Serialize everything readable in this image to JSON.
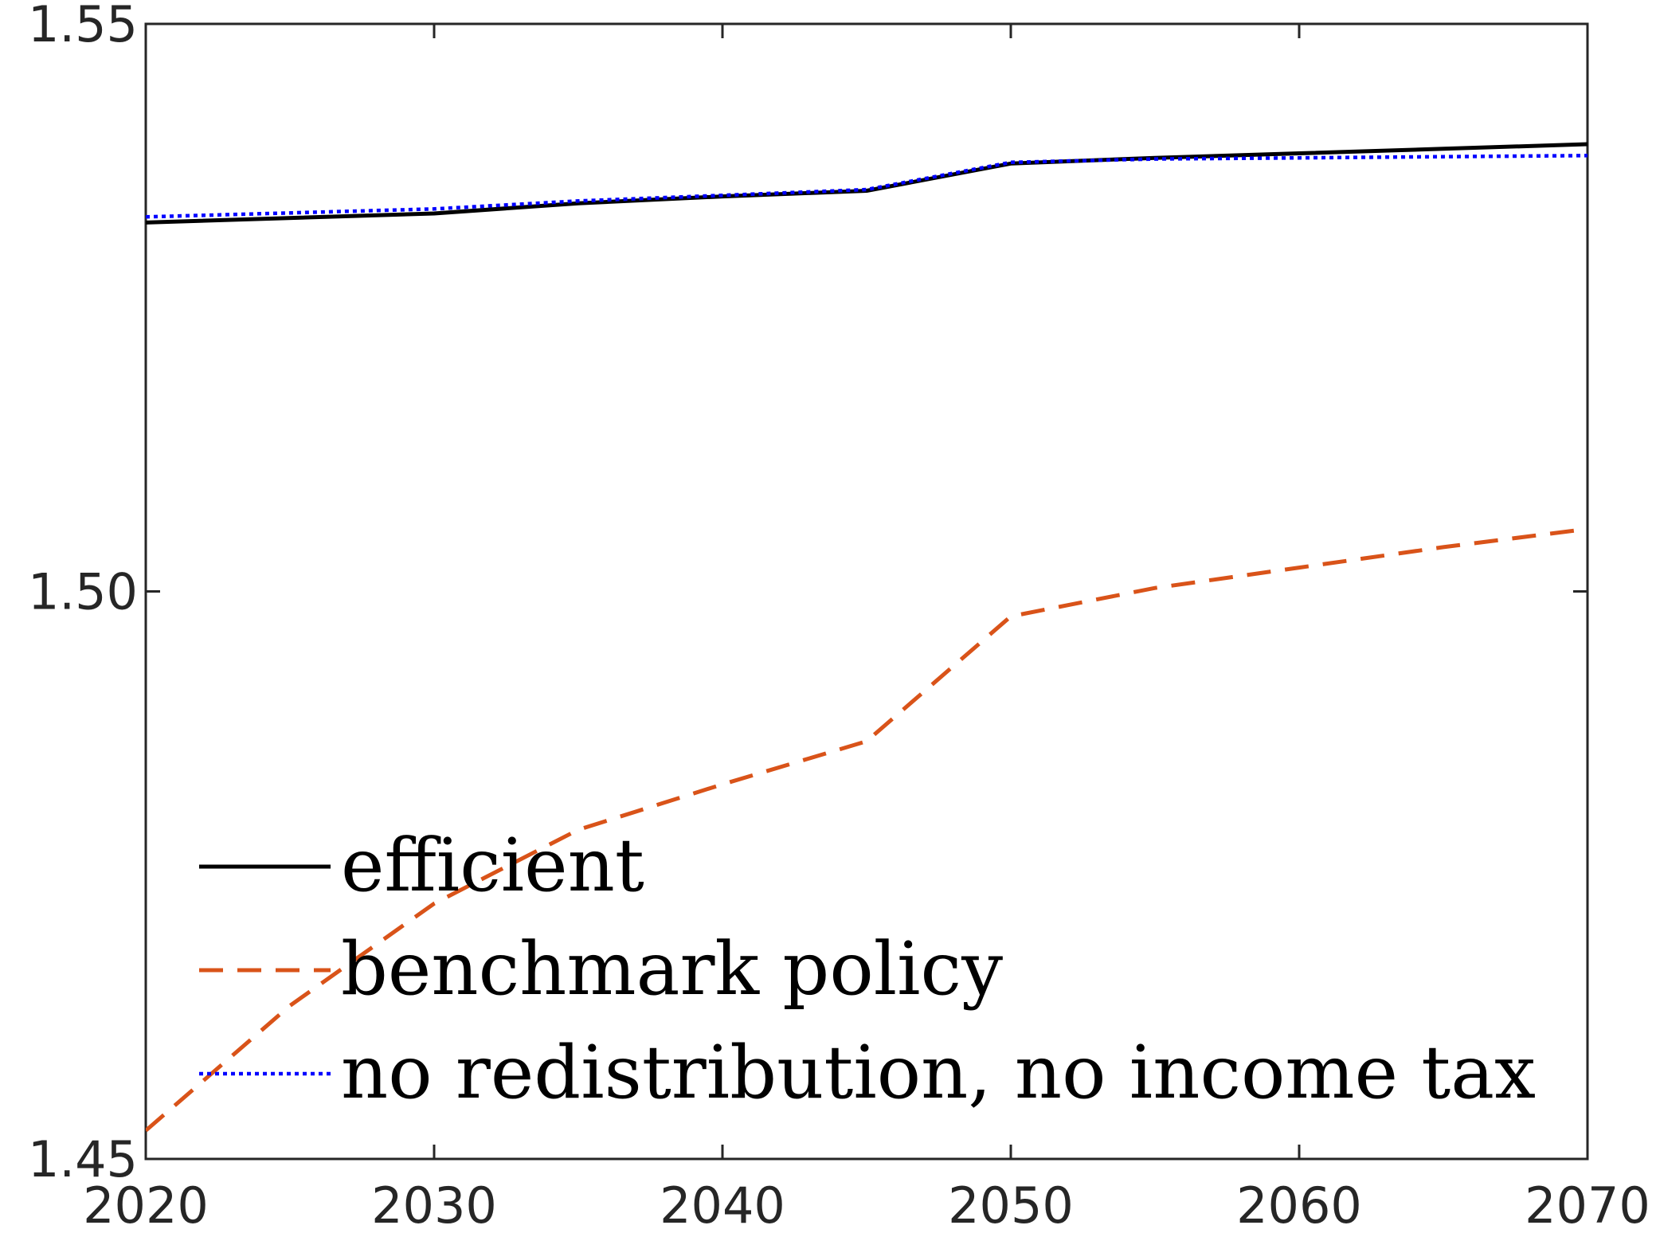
{
  "chart_data": {
    "type": "line",
    "title": "",
    "xlabel": "",
    "ylabel": "",
    "xlim": [
      2020,
      2070
    ],
    "ylim": [
      1.45,
      1.55
    ],
    "x_ticks": [
      2020,
      2030,
      2040,
      2050,
      2060,
      2070
    ],
    "x_tick_labels": [
      "2020",
      "2030",
      "2040",
      "2050",
      "2060",
      "2070"
    ],
    "y_ticks": [
      1.45,
      1.5,
      1.55
    ],
    "y_tick_labels": [
      "1.45",
      "1.50",
      "1.55"
    ],
    "grid": false,
    "legend_position": "bottom-left",
    "series": [
      {
        "name": "efficient",
        "style": "solid",
        "color": "#000000",
        "x": [
          2020,
          2030,
          2035,
          2040,
          2045,
          2050,
          2055,
          2060,
          2065,
          2070
        ],
        "y": [
          1.5325,
          1.5333,
          1.5342,
          1.5348,
          1.5353,
          1.5377,
          1.5382,
          1.5386,
          1.539,
          1.5394
        ]
      },
      {
        "name": "benchmark policy",
        "style": "dashed",
        "color": "#D95319",
        "x": [
          2020,
          2025,
          2030,
          2035,
          2040,
          2045,
          2050,
          2055,
          2060,
          2065,
          2070
        ],
        "y": [
          1.4525,
          1.4635,
          1.4725,
          1.479,
          1.483,
          1.4868,
          1.4978,
          1.5003,
          1.5021,
          1.5039,
          1.5055
        ]
      },
      {
        "name": "no redistribution, no income tax",
        "style": "dotted",
        "color": "#0000FF",
        "x": [
          2020,
          2030,
          2035,
          2040,
          2045,
          2050,
          2055,
          2060,
          2065,
          2070
        ],
        "y": [
          1.533,
          1.5337,
          1.5344,
          1.5349,
          1.5354,
          1.5378,
          1.5381,
          1.5382,
          1.5383,
          1.5384
        ]
      }
    ]
  }
}
